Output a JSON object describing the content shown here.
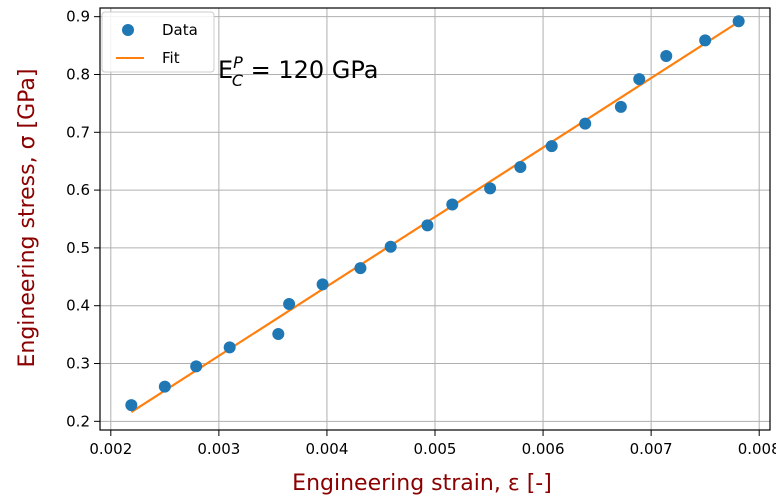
{
  "chart_data": {
    "type": "scatter",
    "xlabel": "Engineering strain, ε [-]",
    "ylabel": "Engineering stress, σ [GPa]",
    "xlim": [
      0.0019,
      0.0081
    ],
    "ylim": [
      0.185,
      0.915
    ],
    "xticks": [
      0.002,
      0.003,
      0.004,
      0.005,
      0.006,
      0.007,
      0.008
    ],
    "xtick_labels": [
      "0.002",
      "0.003",
      "0.004",
      "0.005",
      "0.006",
      "0.007",
      "0.008"
    ],
    "yticks": [
      0.2,
      0.3,
      0.4,
      0.5,
      0.6,
      0.7,
      0.8,
      0.9
    ],
    "ytick_labels": [
      "0.2",
      "0.3",
      "0.4",
      "0.5",
      "0.6",
      "0.7",
      "0.8",
      "0.9"
    ],
    "grid": true,
    "legend_position": "top-left",
    "series": [
      {
        "name": "Data",
        "kind": "scatter",
        "color": "#1f77b4",
        "points": [
          [
            0.00219,
            0.228
          ],
          [
            0.0025,
            0.26
          ],
          [
            0.00279,
            0.295
          ],
          [
            0.0031,
            0.328
          ],
          [
            0.00355,
            0.351
          ],
          [
            0.00365,
            0.403
          ],
          [
            0.00396,
            0.437
          ],
          [
            0.00431,
            0.465
          ],
          [
            0.00459,
            0.502
          ],
          [
            0.00493,
            0.539
          ],
          [
            0.00516,
            0.575
          ],
          [
            0.00551,
            0.603
          ],
          [
            0.00579,
            0.64
          ],
          [
            0.00608,
            0.676
          ],
          [
            0.00639,
            0.715
          ],
          [
            0.00672,
            0.744
          ],
          [
            0.00689,
            0.792
          ],
          [
            0.00714,
            0.832
          ],
          [
            0.0075,
            0.859
          ],
          [
            0.00781,
            0.892
          ]
        ]
      },
      {
        "name": "Fit",
        "kind": "line",
        "color": "#ff7f0e",
        "points": [
          [
            0.00219,
            0.216
          ],
          [
            0.00781,
            0.891
          ]
        ]
      }
    ],
    "annotation": {
      "base": "E",
      "superscript": "P",
      "subscript": "C",
      "rest": " = 120 GPa"
    }
  },
  "colors": {
    "axis_label": "#8b0000",
    "grid": "#b0b0b0",
    "axes": "#000000"
  }
}
